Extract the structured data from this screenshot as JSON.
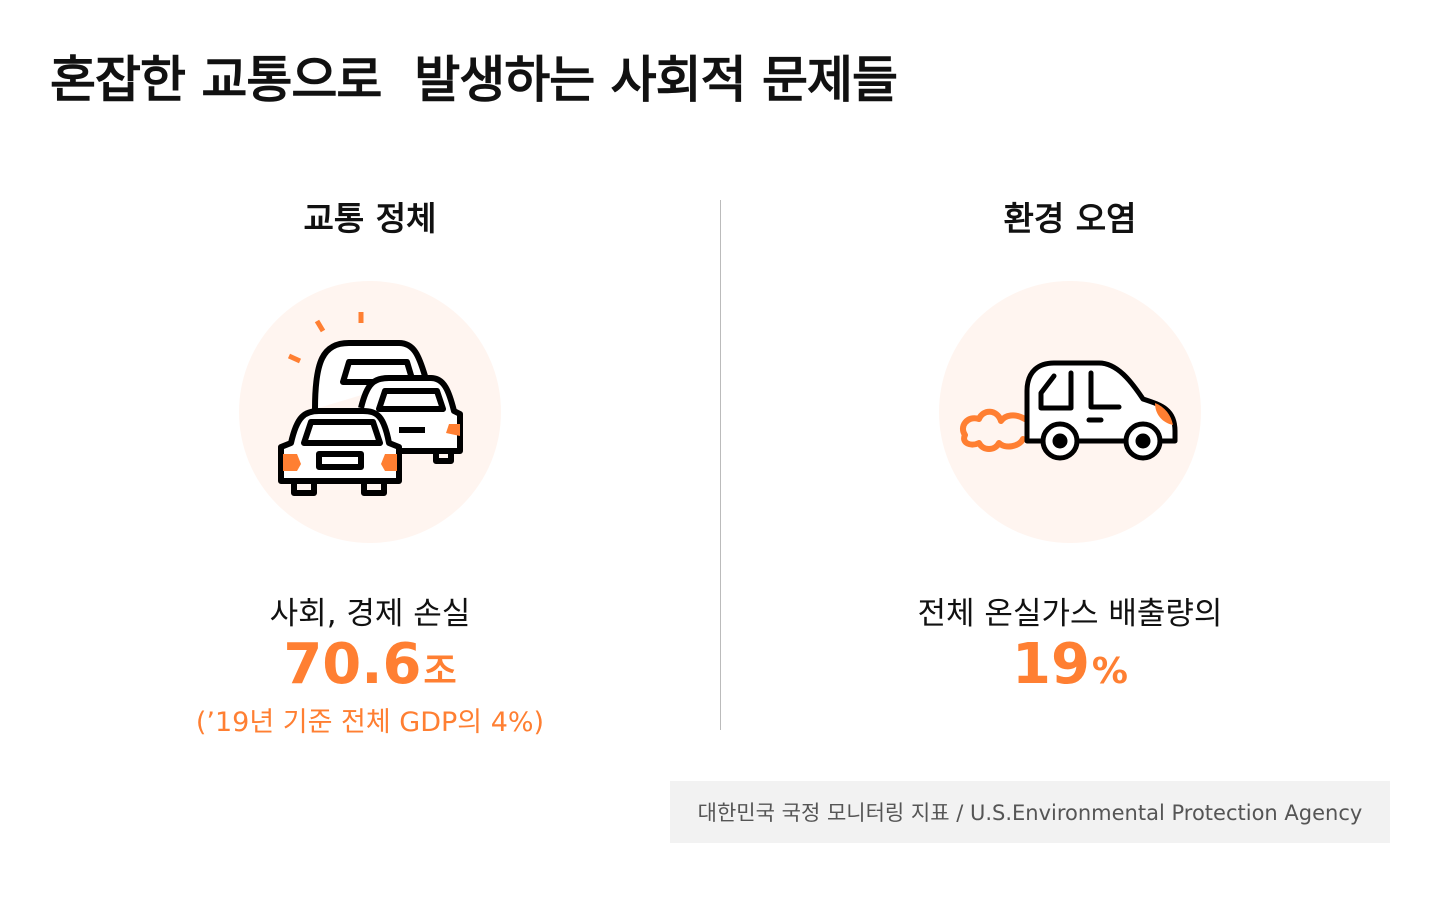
{
  "title": "혼잡한 교통으로  발생하는 사회적 문제들",
  "colors": {
    "accent": "#ff7f32",
    "circle_bg": "#fff5f0",
    "source_bg": "#f2f2f2"
  },
  "sections": [
    {
      "heading": "교통 정체",
      "icon": "traffic-jam-cars-icon",
      "label": "사회, 경제 손실",
      "value": "70.6",
      "unit": "조",
      "caption": "(’19년 기준 전체 GDP의 4%)"
    },
    {
      "heading": "환경 오염",
      "icon": "car-exhaust-icon",
      "label": "전체 온실가스 배출량의",
      "value": "19",
      "unit": "%"
    }
  ],
  "source": "대한민국 국정 모니터링 지표 / U.S.Environmental Protection Agency"
}
